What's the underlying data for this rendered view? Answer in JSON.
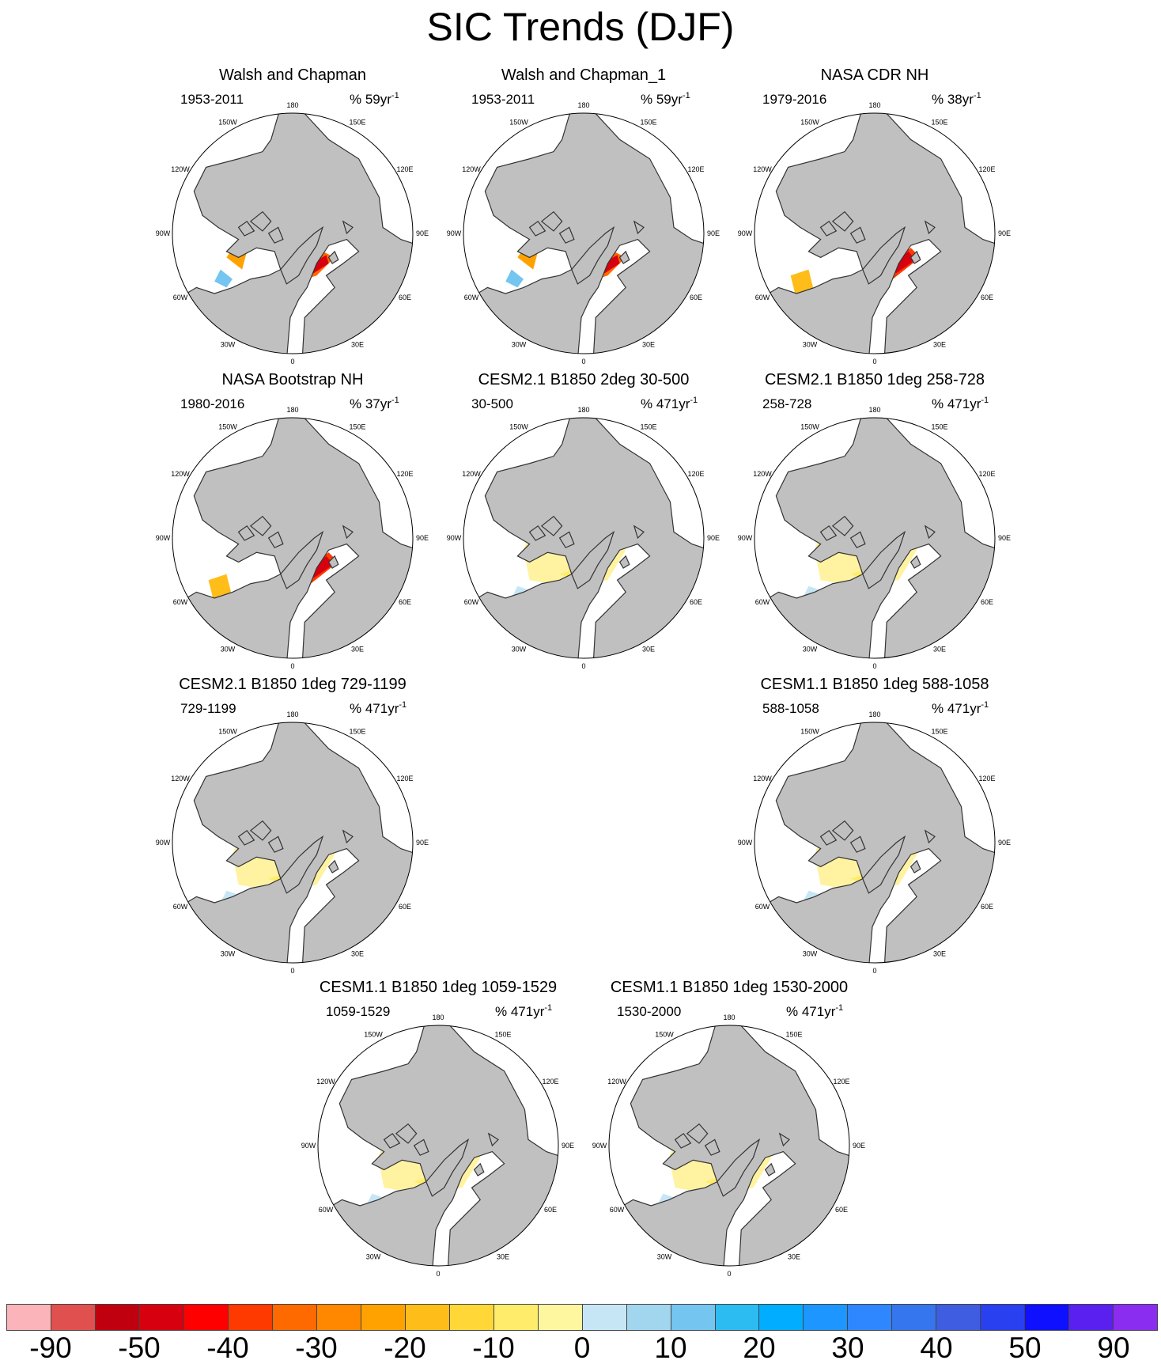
{
  "title": "SIC Trends (DJF)",
  "lon_labels": [
    "180",
    "150W",
    "120W",
    "90W",
    "60W",
    "30W",
    "0",
    "30E",
    "60E",
    "90E",
    "120E",
    "150E"
  ],
  "panels": [
    {
      "title": "Walsh and Chapman",
      "period": "1953-2011",
      "units": "% 59yr",
      "exp": "-1",
      "pattern": "obs1"
    },
    {
      "title": "Walsh and Chapman_1",
      "period": "1953-2011",
      "units": "% 59yr",
      "exp": "-1",
      "pattern": "obs1"
    },
    {
      "title": "NASA CDR NH",
      "period": "1979-2016",
      "units": "% 38yr",
      "exp": "-1",
      "pattern": "obs2"
    },
    {
      "title": "NASA Bootstrap NH",
      "period": "1980-2016",
      "units": "% 37yr",
      "exp": "-1",
      "pattern": "obs2"
    },
    {
      "title": "CESM2.1 B1850 2deg 30-500",
      "period": "30-500",
      "units": "% 471yr",
      "exp": "-1",
      "pattern": "model"
    },
    {
      "title": "CESM2.1 B1850 1deg 258-728",
      "period": "258-728",
      "units": "% 471yr",
      "exp": "-1",
      "pattern": "model"
    },
    {
      "title": "CESM2.1 B1850 1deg 729-1199",
      "period": "729-1199",
      "units": "% 471yr",
      "exp": "-1",
      "pattern": "model"
    },
    {
      "title": "CESM1.1 B1850 1deg 588-1058",
      "period": "588-1058",
      "units": "% 471yr",
      "exp": "-1",
      "pattern": "model"
    },
    {
      "title": "CESM1.1 B1850 1deg 1059-1529",
      "period": "1059-1529",
      "units": "% 471yr",
      "exp": "-1",
      "pattern": "model"
    },
    {
      "title": "CESM1.1 B1850 1deg 1530-2000",
      "period": "1530-2000",
      "units": "% 471yr",
      "exp": "-1",
      "pattern": "model"
    }
  ],
  "colorbar": {
    "colors": [
      "#fbb4b9",
      "#e0504f",
      "#c0000f",
      "#d7000f",
      "#ff0000",
      "#ff3a00",
      "#ff6a00",
      "#ff8800",
      "#ffa200",
      "#ffbd1a",
      "#ffd838",
      "#ffec6a",
      "#fff6a0",
      "#c7e6f5",
      "#a2d6ee",
      "#74c5f0",
      "#2cbcf2",
      "#00adff",
      "#1e96ff",
      "#2e87ff",
      "#3575ee",
      "#3f5de0",
      "#2840f0",
      "#0e10ff",
      "#5a20f0",
      "#8a2df0"
    ],
    "labels": [
      "-90",
      "-50",
      "-40",
      "-30",
      "-20",
      "-10",
      "0",
      "10",
      "20",
      "30",
      "40",
      "50",
      "90"
    ]
  }
}
